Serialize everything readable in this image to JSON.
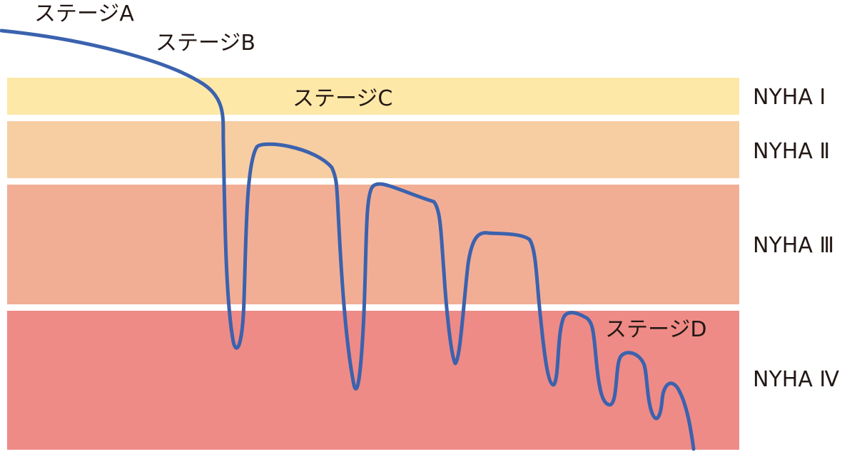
{
  "diagram": {
    "stage_labels": {
      "a": "ステージA",
      "b": "ステージB",
      "c": "ステージC",
      "d": "ステージD"
    },
    "nyha_bands": [
      {
        "label": "NYHA Ⅰ",
        "color": "#fde8a8"
      },
      {
        "label": "NYHA Ⅱ",
        "color": "#f7cda2"
      },
      {
        "label": "NYHA Ⅲ",
        "color": "#f2ae95"
      },
      {
        "label": "NYHA Ⅳ",
        "color": "#ee8b86"
      }
    ],
    "curve_color": "#3b62ae"
  }
}
